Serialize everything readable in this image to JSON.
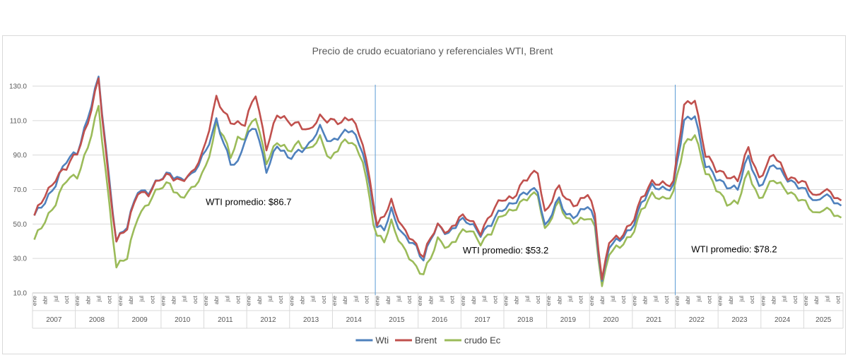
{
  "chart_data": {
    "type": "line",
    "title": "Precio de crudo ecuatoriano y referenciales WTI, Brent",
    "xlabel": "",
    "ylabel": "",
    "ylim": [
      10,
      130
    ],
    "yticks": [
      "10.0",
      "30.0",
      "50.0",
      "70.0",
      "90.0",
      "110.0",
      "130.0"
    ],
    "years": [
      "2007",
      "2008",
      "2009",
      "2010",
      "2011",
      "2012",
      "2013",
      "2014",
      "2015",
      "2016",
      "2017",
      "2018",
      "2019",
      "2020",
      "2021",
      "2022",
      "2023",
      "2024",
      "2025"
    ],
    "month_labels": [
      "ene",
      "abr",
      "jul",
      "oct"
    ],
    "last_year_months": 11,
    "grid": true,
    "legend_position": "bottom",
    "colors": {
      "wti": "#4f81bd",
      "brent": "#c0504d",
      "crudo": "#9bbb59",
      "divider": "#5b9bd5",
      "grid": "#d9d9d9"
    },
    "dividers": [
      "2014-12",
      "2021-12"
    ],
    "annotations": [
      {
        "text": "WTI promedio: $86.7",
        "x": "2011-01",
        "y": 61
      },
      {
        "text": "WTI promedio: $53.2",
        "x": "2017-01",
        "y": 33
      },
      {
        "text": "WTI promedio: $78.2",
        "x": "2022-05",
        "y": 33.5
      }
    ],
    "series": [
      {
        "name": "Wti",
        "key": "wti",
        "anchors": [
          [
            "2007-01",
            54
          ],
          [
            "2007-04",
            63
          ],
          [
            "2007-07",
            74
          ],
          [
            "2007-10",
            86
          ],
          [
            "2008-01",
            92
          ],
          [
            "2008-04",
            112
          ],
          [
            "2008-07",
            134
          ],
          [
            "2008-10",
            76
          ],
          [
            "2008-12",
            41
          ],
          [
            "2009-03",
            48
          ],
          [
            "2009-06",
            70
          ],
          [
            "2009-09",
            69
          ],
          [
            "2009-12",
            75
          ],
          [
            "2010-03",
            80
          ],
          [
            "2010-06",
            76
          ],
          [
            "2010-09",
            77
          ],
          [
            "2010-12",
            89
          ],
          [
            "2011-03",
            103
          ],
          [
            "2011-04",
            110
          ],
          [
            "2011-06",
            96
          ],
          [
            "2011-08",
            86
          ],
          [
            "2011-10",
            86
          ],
          [
            "2011-12",
            99
          ],
          [
            "2012-03",
            106
          ],
          [
            "2012-06",
            82
          ],
          [
            "2012-09",
            95
          ],
          [
            "2012-12",
            88
          ],
          [
            "2013-03",
            93
          ],
          [
            "2013-06",
            95
          ],
          [
            "2013-09",
            106
          ],
          [
            "2013-12",
            98
          ],
          [
            "2014-03",
            101
          ],
          [
            "2014-06",
            105
          ],
          [
            "2014-09",
            93
          ],
          [
            "2014-12",
            59
          ],
          [
            "2015-01",
            47
          ],
          [
            "2015-03",
            48
          ],
          [
            "2015-05",
            59
          ],
          [
            "2015-08",
            43
          ],
          [
            "2015-12",
            37
          ],
          [
            "2016-02",
            30
          ],
          [
            "2016-04",
            41
          ],
          [
            "2016-06",
            48
          ],
          [
            "2016-09",
            45
          ],
          [
            "2016-12",
            52
          ],
          [
            "2017-03",
            50
          ],
          [
            "2017-06",
            45
          ],
          [
            "2017-09",
            50
          ],
          [
            "2017-12",
            58
          ],
          [
            "2018-03",
            63
          ],
          [
            "2018-06",
            67
          ],
          [
            "2018-10",
            70
          ],
          [
            "2018-12",
            49
          ],
          [
            "2019-04",
            64
          ],
          [
            "2019-06",
            55
          ],
          [
            "2019-09",
            56
          ],
          [
            "2019-12",
            60
          ],
          [
            "2020-02",
            51
          ],
          [
            "2020-04",
            17
          ],
          [
            "2020-06",
            38
          ],
          [
            "2020-09",
            40
          ],
          [
            "2020-12",
            47
          ],
          [
            "2021-03",
            62
          ],
          [
            "2021-06",
            71
          ],
          [
            "2021-09",
            71
          ],
          [
            "2021-12",
            72
          ],
          [
            "2022-03",
            109
          ],
          [
            "2022-06",
            114
          ],
          [
            "2022-09",
            84
          ],
          [
            "2022-12",
            76
          ],
          [
            "2023-03",
            73
          ],
          [
            "2023-06",
            70
          ],
          [
            "2023-09",
            89
          ],
          [
            "2023-12",
            72
          ],
          [
            "2024-04",
            84
          ],
          [
            "2024-08",
            77
          ],
          [
            "2024-12",
            70
          ],
          [
            "2025-04",
            63
          ],
          [
            "2025-06",
            68
          ],
          [
            "2025-11",
            59
          ]
        ]
      },
      {
        "name": "Brent",
        "key": "brent",
        "anchors": [
          [
            "2007-01",
            54
          ],
          [
            "2007-04",
            67
          ],
          [
            "2007-07",
            77
          ],
          [
            "2007-10",
            82
          ],
          [
            "2008-01",
            92
          ],
          [
            "2008-04",
            109
          ],
          [
            "2008-07",
            133
          ],
          [
            "2008-10",
            73
          ],
          [
            "2008-12",
            41
          ],
          [
            "2009-03",
            47
          ],
          [
            "2009-06",
            69
          ],
          [
            "2009-09",
            68
          ],
          [
            "2009-12",
            75
          ],
          [
            "2010-03",
            79
          ],
          [
            "2010-06",
            75
          ],
          [
            "2010-09",
            78
          ],
          [
            "2010-12",
            91
          ],
          [
            "2011-03",
            114
          ],
          [
            "2011-04",
            123
          ],
          [
            "2011-06",
            114
          ],
          [
            "2011-08",
            110
          ],
          [
            "2011-10",
            109
          ],
          [
            "2011-12",
            108
          ],
          [
            "2012-03",
            125
          ],
          [
            "2012-06",
            95
          ],
          [
            "2012-09",
            113
          ],
          [
            "2012-12",
            109
          ],
          [
            "2013-03",
            109
          ],
          [
            "2013-06",
            103
          ],
          [
            "2013-09",
            112
          ],
          [
            "2013-12",
            111
          ],
          [
            "2014-03",
            108
          ],
          [
            "2014-06",
            112
          ],
          [
            "2014-09",
            98
          ],
          [
            "2014-12",
            62
          ],
          [
            "2015-01",
            48
          ],
          [
            "2015-03",
            56
          ],
          [
            "2015-05",
            64
          ],
          [
            "2015-08",
            47
          ],
          [
            "2015-12",
            38
          ],
          [
            "2016-02",
            32
          ],
          [
            "2016-04",
            42
          ],
          [
            "2016-06",
            48
          ],
          [
            "2016-09",
            46
          ],
          [
            "2016-12",
            54
          ],
          [
            "2017-03",
            52
          ],
          [
            "2017-06",
            46
          ],
          [
            "2017-09",
            56
          ],
          [
            "2017-12",
            64
          ],
          [
            "2018-03",
            66
          ],
          [
            "2018-06",
            74
          ],
          [
            "2018-10",
            81
          ],
          [
            "2018-12",
            57
          ],
          [
            "2019-04",
            71
          ],
          [
            "2019-06",
            64
          ],
          [
            "2019-09",
            62
          ],
          [
            "2019-12",
            67
          ],
          [
            "2020-02",
            55
          ],
          [
            "2020-04",
            18
          ],
          [
            "2020-06",
            41
          ],
          [
            "2020-09",
            41
          ],
          [
            "2020-12",
            50
          ],
          [
            "2021-03",
            65
          ],
          [
            "2021-06",
            73
          ],
          [
            "2021-09",
            74
          ],
          [
            "2021-12",
            74
          ],
          [
            "2022-03",
            118
          ],
          [
            "2022-06",
            123
          ],
          [
            "2022-09",
            90
          ],
          [
            "2022-12",
            81
          ],
          [
            "2023-03",
            79
          ],
          [
            "2023-06",
            75
          ],
          [
            "2023-09",
            94
          ],
          [
            "2023-12",
            77
          ],
          [
            "2024-04",
            90
          ],
          [
            "2024-08",
            78
          ],
          [
            "2024-12",
            74
          ],
          [
            "2025-04",
            66
          ],
          [
            "2025-06",
            71
          ],
          [
            "2025-11",
            62
          ]
        ]
      },
      {
        "name": "crudo Ec",
        "key": "crudo",
        "anchors": [
          [
            "2007-01",
            40
          ],
          [
            "2007-04",
            52
          ],
          [
            "2007-07",
            63
          ],
          [
            "2007-10",
            75
          ],
          [
            "2008-01",
            78
          ],
          [
            "2008-04",
            95
          ],
          [
            "2008-07",
            117
          ],
          [
            "2008-10",
            62
          ],
          [
            "2008-12",
            26
          ],
          [
            "2009-03",
            30
          ],
          [
            "2009-06",
            55
          ],
          [
            "2009-09",
            63
          ],
          [
            "2009-12",
            70
          ],
          [
            "2010-03",
            74
          ],
          [
            "2010-06",
            65
          ],
          [
            "2010-09",
            69
          ],
          [
            "2010-12",
            79
          ],
          [
            "2011-03",
            97
          ],
          [
            "2011-04",
            108
          ],
          [
            "2011-06",
            100
          ],
          [
            "2011-08",
            90
          ],
          [
            "2011-10",
            100
          ],
          [
            "2011-12",
            100
          ],
          [
            "2012-03",
            112
          ],
          [
            "2012-06",
            87
          ],
          [
            "2012-09",
            97
          ],
          [
            "2012-12",
            92
          ],
          [
            "2013-03",
            98
          ],
          [
            "2013-06",
            92
          ],
          [
            "2013-09",
            100
          ],
          [
            "2013-12",
            88
          ],
          [
            "2014-03",
            96
          ],
          [
            "2014-06",
            98
          ],
          [
            "2014-09",
            88
          ],
          [
            "2014-12",
            50
          ],
          [
            "2015-01",
            42
          ],
          [
            "2015-03",
            41
          ],
          [
            "2015-05",
            52
          ],
          [
            "2015-08",
            36
          ],
          [
            "2015-12",
            25
          ],
          [
            "2016-02",
            22
          ],
          [
            "2016-04",
            30
          ],
          [
            "2016-06",
            40
          ],
          [
            "2016-09",
            37
          ],
          [
            "2016-12",
            44
          ],
          [
            "2017-03",
            46
          ],
          [
            "2017-06",
            40
          ],
          [
            "2017-09",
            45
          ],
          [
            "2017-12",
            55
          ],
          [
            "2018-03",
            59
          ],
          [
            "2018-06",
            63
          ],
          [
            "2018-10",
            68
          ],
          [
            "2018-12",
            47
          ],
          [
            "2019-04",
            62
          ],
          [
            "2019-06",
            53
          ],
          [
            "2019-09",
            52
          ],
          [
            "2019-12",
            53
          ],
          [
            "2020-02",
            48
          ],
          [
            "2020-04",
            14
          ],
          [
            "2020-06",
            34
          ],
          [
            "2020-09",
            36
          ],
          [
            "2020-12",
            43
          ],
          [
            "2021-03",
            58
          ],
          [
            "2021-06",
            66
          ],
          [
            "2021-09",
            65
          ],
          [
            "2021-12",
            68
          ],
          [
            "2022-03",
            95
          ],
          [
            "2022-06",
            103
          ],
          [
            "2022-09",
            80
          ],
          [
            "2022-12",
            70
          ],
          [
            "2023-03",
            63
          ],
          [
            "2023-06",
            62
          ],
          [
            "2023-09",
            80
          ],
          [
            "2023-12",
            65
          ],
          [
            "2024-04",
            75
          ],
          [
            "2024-08",
            70
          ],
          [
            "2024-12",
            63
          ],
          [
            "2025-04",
            56
          ],
          [
            "2025-06",
            60
          ],
          [
            "2025-11",
            52
          ]
        ]
      }
    ]
  }
}
